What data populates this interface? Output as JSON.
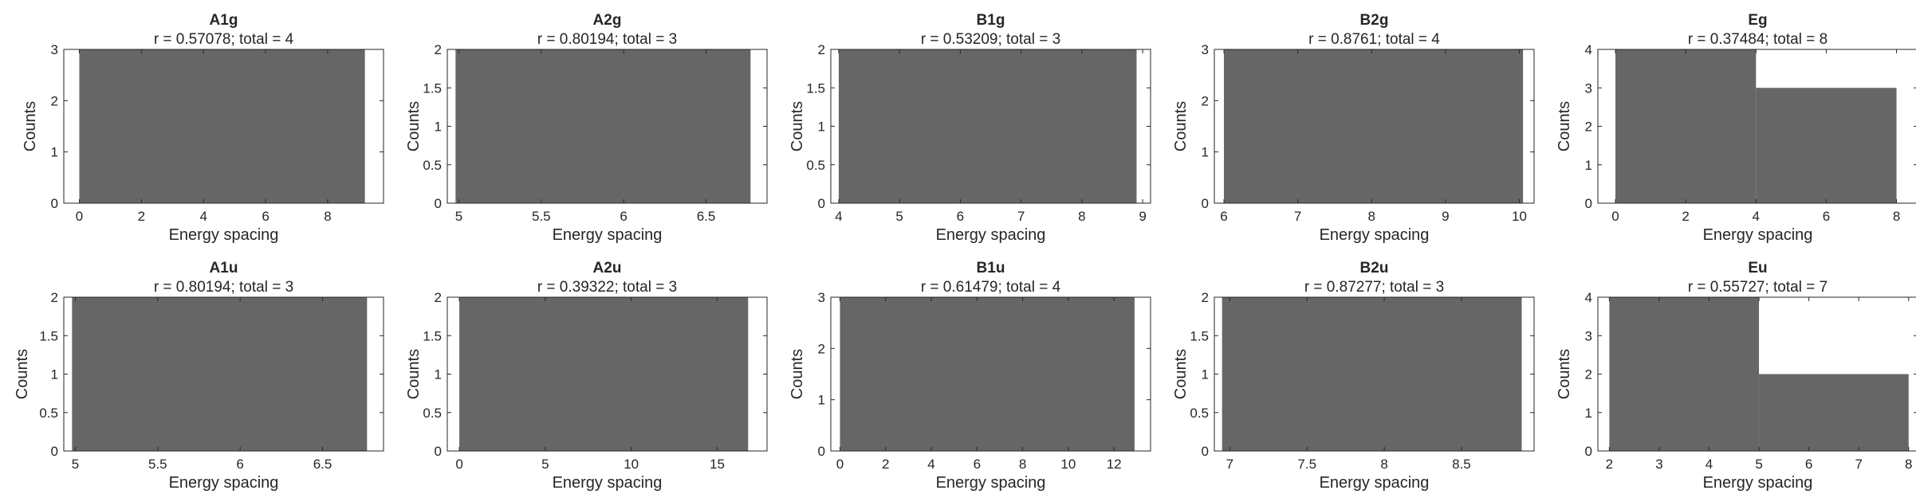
{
  "chart_data": [
    {
      "type": "bar",
      "title": "A1g",
      "subtitle": "r = 0.57078; total = 4",
      "xlabel": "Energy spacing",
      "ylabel": "Counts",
      "xlim": [
        -0.5,
        9.8
      ],
      "ylim": [
        0,
        3
      ],
      "xticks": [
        "0",
        "2",
        "4",
        "6",
        "8"
      ],
      "xtick_values": [
        0,
        2,
        4,
        6,
        8
      ],
      "yticks": [
        "0",
        "1",
        "2",
        "3"
      ],
      "ytick_values": [
        0,
        1,
        2,
        3
      ],
      "bins": [
        {
          "x0": 0.0,
          "x1": 9.2,
          "count": 3
        }
      ]
    },
    {
      "type": "bar",
      "title": "A2g",
      "subtitle": "r = 0.80194; total = 3",
      "xlabel": "Energy spacing",
      "ylabel": "Counts",
      "xlim": [
        4.93,
        6.87
      ],
      "ylim": [
        0,
        2
      ],
      "xticks": [
        "5",
        "5.5",
        "6",
        "6.5"
      ],
      "xtick_values": [
        5,
        5.5,
        6,
        6.5
      ],
      "yticks": [
        "0",
        "0.5",
        "1",
        "1.5",
        "2"
      ],
      "ytick_values": [
        0,
        0.5,
        1,
        1.5,
        2
      ],
      "bins": [
        {
          "x0": 4.98,
          "x1": 6.77,
          "count": 2
        }
      ]
    },
    {
      "type": "bar",
      "title": "B1g",
      "subtitle": "r = 0.53209; total = 3",
      "xlabel": "Energy spacing",
      "ylabel": "Counts",
      "xlim": [
        3.87,
        9.13
      ],
      "ylim": [
        0,
        2
      ],
      "xticks": [
        "4",
        "5",
        "6",
        "7",
        "8",
        "9"
      ],
      "xtick_values": [
        4,
        5,
        6,
        7,
        8,
        9
      ],
      "yticks": [
        "0",
        "0.5",
        "1",
        "1.5",
        "2"
      ],
      "ytick_values": [
        0,
        0.5,
        1,
        1.5,
        2
      ],
      "bins": [
        {
          "x0": 4.0,
          "x1": 8.9,
          "count": 2
        }
      ]
    },
    {
      "type": "bar",
      "title": "B2g",
      "subtitle": "r = 0.8761; total = 4",
      "xlabel": "Energy spacing",
      "ylabel": "Counts",
      "xlim": [
        5.87,
        10.2
      ],
      "ylim": [
        0,
        3
      ],
      "xticks": [
        "6",
        "7",
        "8",
        "9",
        "10"
      ],
      "xtick_values": [
        6,
        7,
        8,
        9,
        10
      ],
      "yticks": [
        "0",
        "1",
        "2",
        "3"
      ],
      "ytick_values": [
        0,
        1,
        2,
        3
      ],
      "bins": [
        {
          "x0": 6.0,
          "x1": 10.05,
          "count": 3
        }
      ]
    },
    {
      "type": "bar",
      "title": "Eg",
      "subtitle": "r = 0.37484; total = 8",
      "xlabel": "Energy spacing",
      "ylabel": "Counts",
      "xlim": [
        -0.5,
        8.6
      ],
      "ylim": [
        0,
        4
      ],
      "xticks": [
        "0",
        "2",
        "4",
        "6",
        "8"
      ],
      "xtick_values": [
        0,
        2,
        4,
        6,
        8
      ],
      "yticks": [
        "0",
        "1",
        "2",
        "3",
        "4"
      ],
      "ytick_values": [
        0,
        1,
        2,
        3,
        4
      ],
      "bins": [
        {
          "x0": 0.0,
          "x1": 4.0,
          "count": 4
        },
        {
          "x0": 4.0,
          "x1": 8.0,
          "count": 3
        }
      ]
    },
    {
      "type": "bar",
      "title": "A1u",
      "subtitle": "r = 0.80194; total = 3",
      "xlabel": "Energy spacing",
      "ylabel": "Counts",
      "xlim": [
        4.93,
        6.87
      ],
      "ylim": [
        0,
        2
      ],
      "xticks": [
        "5",
        "5.5",
        "6",
        "6.5"
      ],
      "xtick_values": [
        5,
        5.5,
        6,
        6.5
      ],
      "yticks": [
        "0",
        "0.5",
        "1",
        "1.5",
        "2"
      ],
      "ytick_values": [
        0,
        0.5,
        1,
        1.5,
        2
      ],
      "bins": [
        {
          "x0": 4.98,
          "x1": 6.77,
          "count": 2
        }
      ]
    },
    {
      "type": "bar",
      "title": "A2u",
      "subtitle": "r = 0.39322; total = 3",
      "xlabel": "Energy spacing",
      "ylabel": "Counts",
      "xlim": [
        -0.7,
        17.9
      ],
      "ylim": [
        0,
        2
      ],
      "xticks": [
        "0",
        "5",
        "10",
        "15"
      ],
      "xtick_values": [
        0,
        5,
        10,
        15
      ],
      "yticks": [
        "0",
        "0.5",
        "1",
        "1.5",
        "2"
      ],
      "ytick_values": [
        0,
        0.5,
        1,
        1.5,
        2
      ],
      "bins": [
        {
          "x0": 0.0,
          "x1": 16.8,
          "count": 2
        }
      ]
    },
    {
      "type": "bar",
      "title": "B1u",
      "subtitle": "r = 0.61479; total = 4",
      "xlabel": "Energy spacing",
      "ylabel": "Counts",
      "xlim": [
        -0.4,
        13.6
      ],
      "ylim": [
        0,
        3
      ],
      "xticks": [
        "0",
        "2",
        "4",
        "6",
        "8",
        "10",
        "12"
      ],
      "xtick_values": [
        0,
        2,
        4,
        6,
        8,
        10,
        12
      ],
      "yticks": [
        "0",
        "1",
        "2",
        "3"
      ],
      "ytick_values": [
        0,
        1,
        2,
        3
      ],
      "bins": [
        {
          "x0": 0.0,
          "x1": 12.9,
          "count": 3
        }
      ]
    },
    {
      "type": "bar",
      "title": "B2u",
      "subtitle": "r = 0.87277; total = 3",
      "xlabel": "Energy spacing",
      "ylabel": "Counts",
      "xlim": [
        6.9,
        8.97
      ],
      "ylim": [
        0,
        2
      ],
      "xticks": [
        "7",
        "7.5",
        "8",
        "8.5"
      ],
      "xtick_values": [
        7,
        7.5,
        8,
        8.5
      ],
      "yticks": [
        "0",
        "0.5",
        "1",
        "1.5",
        "2"
      ],
      "ytick_values": [
        0,
        0.5,
        1,
        1.5,
        2
      ],
      "bins": [
        {
          "x0": 6.95,
          "x1": 8.89,
          "count": 2
        }
      ]
    },
    {
      "type": "bar",
      "title": "Eu",
      "subtitle": "r = 0.55727; total = 7",
      "xlabel": "Energy spacing",
      "ylabel": "Counts",
      "xlim": [
        1.77,
        8.18
      ],
      "ylim": [
        0,
        4
      ],
      "xticks": [
        "2",
        "3",
        "4",
        "5",
        "6",
        "7",
        "8"
      ],
      "xtick_values": [
        2,
        3,
        4,
        5,
        6,
        7,
        8
      ],
      "yticks": [
        "0",
        "1",
        "2",
        "3",
        "4"
      ],
      "ytick_values": [
        0,
        1,
        2,
        3,
        4
      ],
      "bins": [
        {
          "x0": 2.0,
          "x1": 5.0,
          "count": 4
        },
        {
          "x0": 5.0,
          "x1": 8.0,
          "count": 2
        }
      ]
    }
  ],
  "style": {
    "bar_color": "#666666",
    "axis_color": "#262626",
    "background": "#ffffff"
  }
}
